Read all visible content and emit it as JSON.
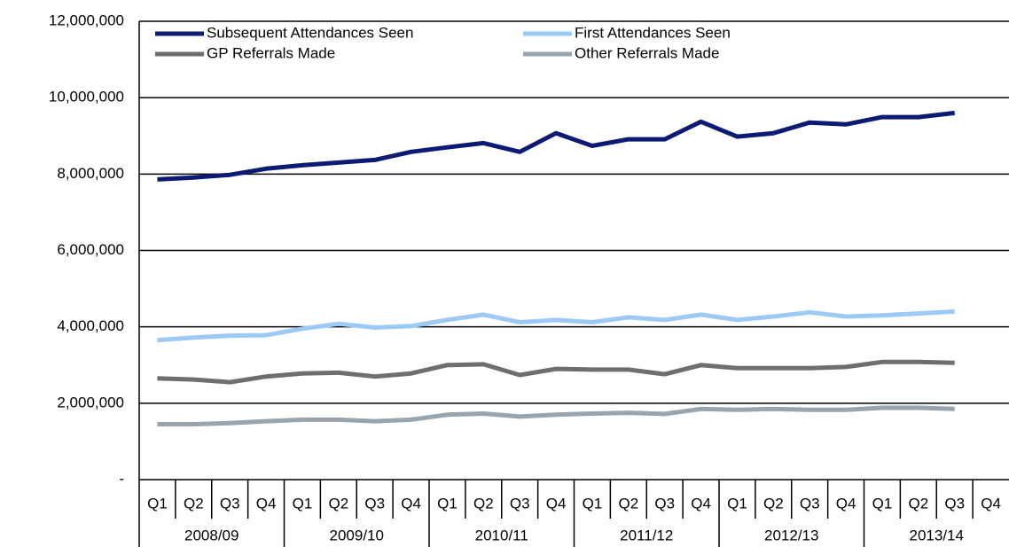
{
  "chart_data": {
    "type": "line",
    "categories": [
      "Q1",
      "Q2",
      "Q3",
      "Q4",
      "Q1",
      "Q2",
      "Q3",
      "Q4",
      "Q1",
      "Q2",
      "Q3",
      "Q4",
      "Q1",
      "Q2",
      "Q3",
      "Q4",
      "Q1",
      "Q2",
      "Q3",
      "Q4",
      "Q1",
      "Q2",
      "Q3",
      "Q4"
    ],
    "category_groups": [
      "2008/09",
      "2009/10",
      "2010/11",
      "2011/12",
      "2012/13",
      "2013/14"
    ],
    "series": [
      {
        "name": "Subsequent Attendances Seen",
        "color": "#0d1a73",
        "values": [
          7860000,
          7910000,
          7980000,
          8140000,
          8230000,
          8300000,
          8370000,
          8580000,
          8700000,
          8810000,
          8580000,
          9070000,
          8740000,
          8910000,
          8910000,
          9370000,
          8980000,
          9070000,
          9350000,
          9300000,
          9490000,
          9490000,
          9600000,
          null
        ]
      },
      {
        "name": "First Attendances Seen",
        "color": "#9dcaf5",
        "values": [
          3650000,
          3720000,
          3770000,
          3780000,
          3950000,
          4080000,
          3980000,
          4020000,
          4180000,
          4320000,
          4120000,
          4180000,
          4120000,
          4250000,
          4180000,
          4320000,
          4180000,
          4270000,
          4380000,
          4270000,
          4300000,
          4350000,
          4400000,
          null
        ]
      },
      {
        "name": "GP Referrals Made",
        "color": "#6e6e6e",
        "values": [
          2650000,
          2620000,
          2550000,
          2700000,
          2780000,
          2800000,
          2700000,
          2780000,
          3000000,
          3020000,
          2740000,
          2900000,
          2880000,
          2880000,
          2760000,
          3000000,
          2920000,
          2920000,
          2920000,
          2950000,
          3080000,
          3080000,
          3060000,
          null
        ]
      },
      {
        "name": "Other Referrals Made",
        "color": "#9aa4ae",
        "values": [
          1450000,
          1450000,
          1480000,
          1530000,
          1570000,
          1570000,
          1530000,
          1570000,
          1700000,
          1730000,
          1650000,
          1700000,
          1730000,
          1750000,
          1720000,
          1850000,
          1830000,
          1850000,
          1830000,
          1830000,
          1880000,
          1880000,
          1850000,
          null
        ]
      }
    ],
    "ylim": [
      0,
      12000000
    ],
    "yticks": [
      {
        "value": 0,
        "label": "-"
      },
      {
        "value": 2000000,
        "label": "2,000,000"
      },
      {
        "value": 4000000,
        "label": "4,000,000"
      },
      {
        "value": 6000000,
        "label": "6,000,000"
      },
      {
        "value": 8000000,
        "label": "8,000,000"
      },
      {
        "value": 10000000,
        "label": "10,000,000"
      },
      {
        "value": 12000000,
        "label": "12,000,000"
      }
    ],
    "grid": true
  }
}
